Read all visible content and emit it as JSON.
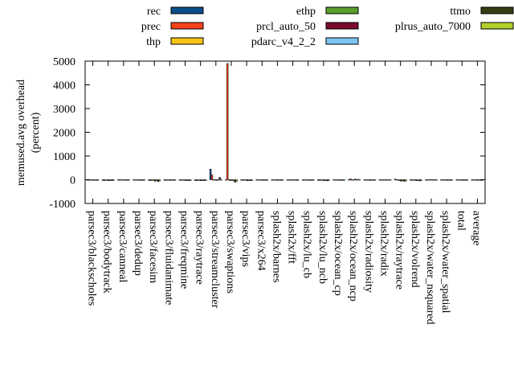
{
  "chart_data": {
    "type": "bar",
    "ylabel_lines": [
      "memused.avg overhead",
      "(percent)"
    ],
    "ylim": [
      -1000,
      5000
    ],
    "yticks": [
      -1000,
      0,
      1000,
      2000,
      3000,
      4000,
      5000
    ],
    "legend_position": "top",
    "categories": [
      "parsec3/blackscholes",
      "parsec3/bodytrack",
      "parsec3/canneal",
      "parsec3/dedup",
      "parsec3/facesim",
      "parsec3/fluidanimate",
      "parsec3/freqmine",
      "parsec3/raytrace",
      "parsec3/streamcluster",
      "parsec3/swaptions",
      "parsec3/vips",
      "parsec3/x264",
      "splash2x/barnes",
      "splash2x/fft",
      "splash2x/lu_cb",
      "splash2x/lu_ncb",
      "splash2x/ocean_cp",
      "splash2x/ocean_ncp",
      "splash2x/radiosity",
      "splash2x/radix",
      "splash2x/raytrace",
      "splash2x/volrend",
      "splash2x/water_nsquared",
      "splash2x/water_spatial",
      "total",
      "average"
    ],
    "series": [
      {
        "name": "rec",
        "color": "#0b4e8c",
        "values": [
          -20,
          -30,
          -20,
          -20,
          -30,
          -20,
          -20,
          -30,
          450,
          -10,
          -20,
          -20,
          -20,
          -20,
          -20,
          -30,
          -20,
          -10,
          -20,
          -10,
          30,
          -20,
          -20,
          -20,
          -20,
          -20
        ]
      },
      {
        "name": "prec",
        "color": "#f5421b",
        "values": [
          -20,
          -40,
          -20,
          -20,
          -40,
          -30,
          -30,
          -40,
          200,
          4900,
          -30,
          -20,
          -20,
          -20,
          -20,
          -30,
          -20,
          40,
          -20,
          -10,
          -10,
          -30,
          -20,
          -20,
          -20,
          -20
        ]
      },
      {
        "name": "thp",
        "color": "#f5c518",
        "values": [
          -20,
          -20,
          -20,
          -20,
          -30,
          -20,
          -20,
          -30,
          -20,
          -20,
          -20,
          -20,
          -20,
          -20,
          -20,
          -20,
          -20,
          -10,
          -20,
          -10,
          -20,
          -20,
          -20,
          -20,
          -20,
          -20
        ]
      },
      {
        "name": "ethp",
        "color": "#5a9e2b",
        "values": [
          -20,
          -30,
          -20,
          -20,
          -30,
          -20,
          -20,
          -30,
          -20,
          -40,
          -20,
          -20,
          -20,
          -20,
          -20,
          -30,
          -20,
          -10,
          -20,
          -10,
          -40,
          -30,
          -20,
          -20,
          -20,
          -20
        ]
      },
      {
        "name": "prcl_auto_50",
        "color": "#7a0a2c",
        "values": [
          -30,
          -40,
          -20,
          -30,
          -60,
          -30,
          -40,
          -40,
          -30,
          -30,
          -40,
          -30,
          -30,
          -20,
          -30,
          -40,
          -30,
          30,
          -30,
          -10,
          -60,
          -40,
          10,
          -30,
          -30,
          -30
        ]
      },
      {
        "name": "pdarc_v4_2_2",
        "color": "#7cc3ef",
        "values": [
          -20,
          -30,
          -20,
          -20,
          -40,
          -20,
          -30,
          -30,
          -20,
          -50,
          -30,
          -20,
          -20,
          -20,
          -20,
          -30,
          -20,
          -10,
          -20,
          -10,
          -40,
          -30,
          -20,
          -20,
          -20,
          -20
        ]
      },
      {
        "name": "ttmo",
        "color": "#333d12",
        "values": [
          -30,
          -40,
          -30,
          -30,
          -80,
          -30,
          -40,
          -40,
          100,
          -100,
          -40,
          -30,
          -30,
          -30,
          -30,
          -50,
          -30,
          20,
          -30,
          -10,
          -70,
          -50,
          -20,
          -30,
          -30,
          -30
        ]
      },
      {
        "name": "plrus_auto_7000",
        "color": "#b1d12a",
        "values": [
          -20,
          -30,
          -20,
          -20,
          -50,
          -20,
          -30,
          -30,
          -20,
          -70,
          -30,
          -20,
          -20,
          -20,
          -20,
          -30,
          -20,
          -10,
          -20,
          -10,
          -50,
          -30,
          -20,
          -20,
          -20,
          -20
        ]
      }
    ]
  }
}
